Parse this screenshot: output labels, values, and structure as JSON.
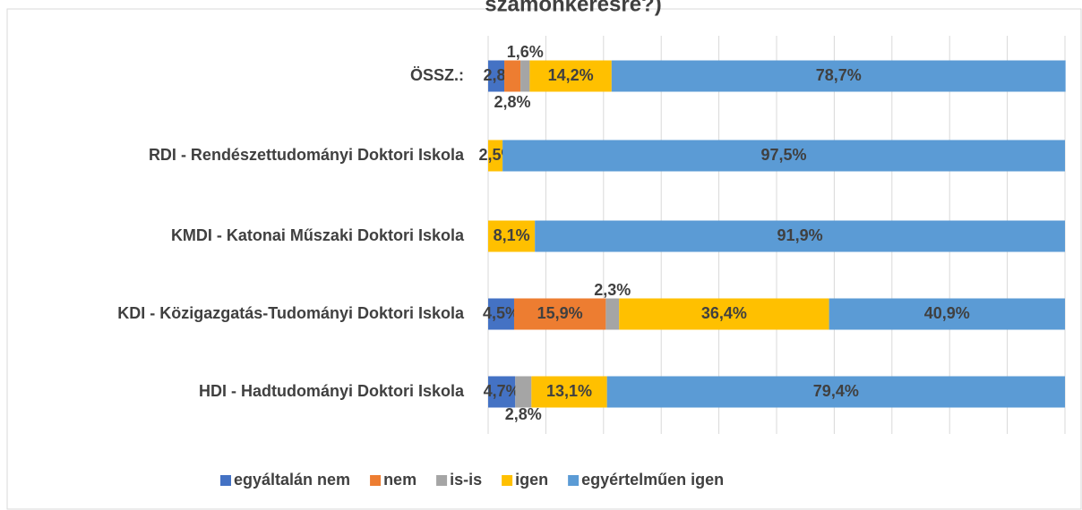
{
  "chart_data": {
    "type": "stacked_bar_horizontal",
    "title": "számonkérésre?)",
    "categories": [
      "ÖSSZ.:",
      "RDI - Rendészettudományi Doktori Iskola",
      "KMDI - Katonai Műszaki Doktori Iskola",
      "KDI - Közigazgatás-Tudományi Doktori Iskola",
      "HDI - Hadtudományi Doktori Iskola"
    ],
    "series": [
      {
        "name": "egyáltalán nem",
        "color": "#4472c4",
        "values": [
          2.8,
          null,
          null,
          4.5,
          4.7
        ],
        "value_labels": [
          "2,8%",
          null,
          null,
          "4,5%",
          "4,7%"
        ]
      },
      {
        "name": "nem",
        "color": "#ed7d31",
        "values": [
          2.8,
          null,
          null,
          15.9,
          null
        ],
        "value_labels": [
          "2,8%",
          null,
          null,
          "15,9%",
          null
        ]
      },
      {
        "name": "is-is",
        "color": "#a5a5a5",
        "values": [
          1.6,
          null,
          null,
          2.3,
          2.8
        ],
        "value_labels": [
          "1,6%",
          null,
          null,
          "2,3%",
          "2,8%"
        ]
      },
      {
        "name": "igen",
        "color": "#ffc000",
        "values": [
          14.2,
          2.5,
          8.1,
          36.4,
          13.1
        ],
        "value_labels": [
          "14,2%",
          "2,5%",
          "8,1%",
          "36,4%",
          "13,1%"
        ]
      },
      {
        "name": "egyértelműen igen",
        "color": "#5b9bd5",
        "values": [
          78.7,
          97.5,
          91.9,
          40.9,
          79.4
        ],
        "value_labels": [
          "78,7%",
          "97,5%",
          "91,9%",
          "40,9%",
          "79,4%"
        ]
      }
    ],
    "xlim": [
      0,
      100
    ],
    "xticks": [
      0,
      10,
      20,
      30,
      40,
      50,
      60,
      70,
      80,
      90,
      100
    ],
    "grid": true,
    "legend": "bottom"
  }
}
